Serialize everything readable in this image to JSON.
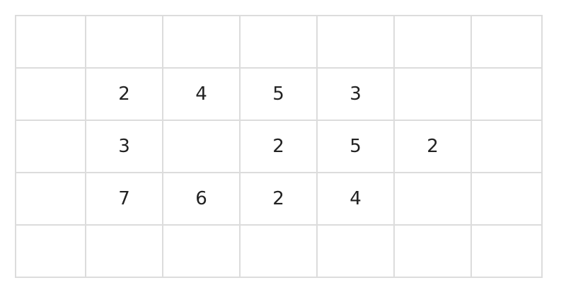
{
  "grid": {
    "rows": [
      [
        "",
        "",
        "",
        "",
        "",
        "",
        ""
      ],
      [
        "",
        "2",
        "4",
        "5",
        "3",
        "",
        ""
      ],
      [
        "",
        "3",
        "",
        "2",
        "5",
        "2",
        ""
      ],
      [
        "",
        "7",
        "6",
        "2",
        "4",
        "",
        ""
      ],
      [
        "",
        "",
        "",
        "",
        "",
        "",
        ""
      ]
    ]
  },
  "colors": {
    "border": "#dcdcdc",
    "text": "#222222"
  }
}
